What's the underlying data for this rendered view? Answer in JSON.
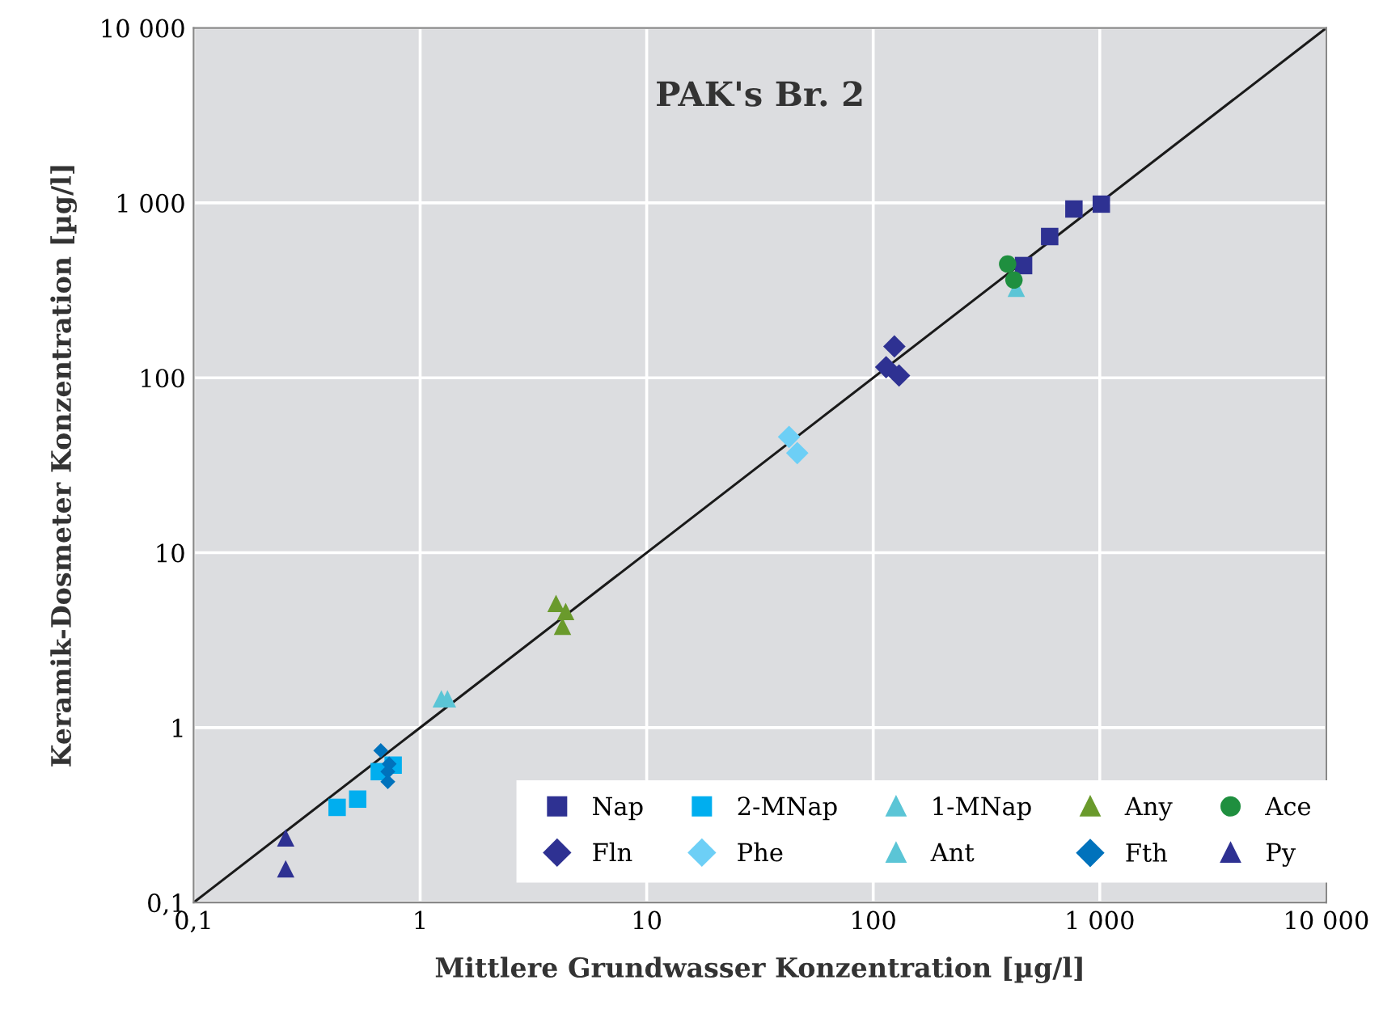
{
  "chart_data": {
    "type": "scatter",
    "title": "PAK's Br. 2",
    "xlabel": "Mittlere Grundwasser Konzentration [µg/l]",
    "ylabel": "Keramik-Dosmeter Konzentration [µg/l]",
    "log": "xy",
    "grid": true,
    "legend": "bottom right",
    "xlim": [
      0.1,
      10000
    ],
    "ylim": [
      0.1,
      10000
    ],
    "xticks": [
      {
        "value": 0.1,
        "label": "0,1"
      },
      1,
      10,
      100,
      {
        "value": 1000,
        "label": "1 000"
      },
      {
        "value": 10000,
        "label": "10 000"
      }
    ],
    "yticks": [
      {
        "value": 0.1,
        "label": "0,1"
      },
      1,
      10,
      100,
      {
        "value": 1000,
        "label": "1 000"
      },
      {
        "value": 10000,
        "label": "10 000"
      }
    ],
    "series": [
      {
        "name": "Nap",
        "color": "#2e3192",
        "marker": "square",
        "x": [
          769,
          1016,
          601,
          461
        ],
        "values": [
          923,
          984,
          642,
          438
        ]
      },
      {
        "name": "2-MNap",
        "color": "#00aeef",
        "marker": "square",
        "x": [
          0.43,
          0.53,
          0.66,
          0.76
        ],
        "values": [
          0.35,
          0.39,
          0.56,
          0.61
        ]
      },
      {
        "name": "1-MNap",
        "color": "#5bc5d6",
        "marker": "triangle",
        "x": [
          428
        ],
        "values": [
          325
        ]
      },
      {
        "name": "Any",
        "color": "#6a9a2c",
        "marker": "triangle",
        "x": [
          3.98,
          4.39,
          4.25
        ],
        "values": [
          5.13,
          4.61,
          3.8
        ]
      },
      {
        "name": "Ace",
        "color": "#1f8f3f",
        "marker": "circle",
        "x": [
          392,
          418
        ],
        "values": [
          447,
          362
        ]
      },
      {
        "name": "Fln",
        "color": "#2e3192",
        "marker": "diamond",
        "x": [
          114,
          124,
          130
        ],
        "values": [
          115,
          151,
          103
        ]
      },
      {
        "name": "Phe",
        "color": "#6dcff6",
        "marker": "diamond",
        "x": [
          42.5,
          46.2
        ],
        "values": [
          45.9,
          37.1
        ]
      },
      {
        "name": "Ant",
        "color": "#5bc5d6",
        "marker": "triangle",
        "x": [
          1.24,
          1.32
        ],
        "values": [
          1.46,
          1.46
        ]
      },
      {
        "name": "Fth",
        "color": "#0072bc",
        "marker": "diamond",
        "x": [
          0.67,
          0.73,
          0.72,
          0.72
        ],
        "values": [
          0.74,
          0.62,
          0.56,
          0.49
        ]
      },
      {
        "name": "Py",
        "color": "#2e3192",
        "marker": "triangle",
        "x": [
          0.255,
          0.255
        ],
        "values": [
          0.234,
          0.156
        ]
      },
      {
        "type": "line",
        "color": "#1a1a1a",
        "x": [
          0.1,
          10000
        ],
        "values": [
          0.1,
          10000
        ]
      }
    ]
  }
}
